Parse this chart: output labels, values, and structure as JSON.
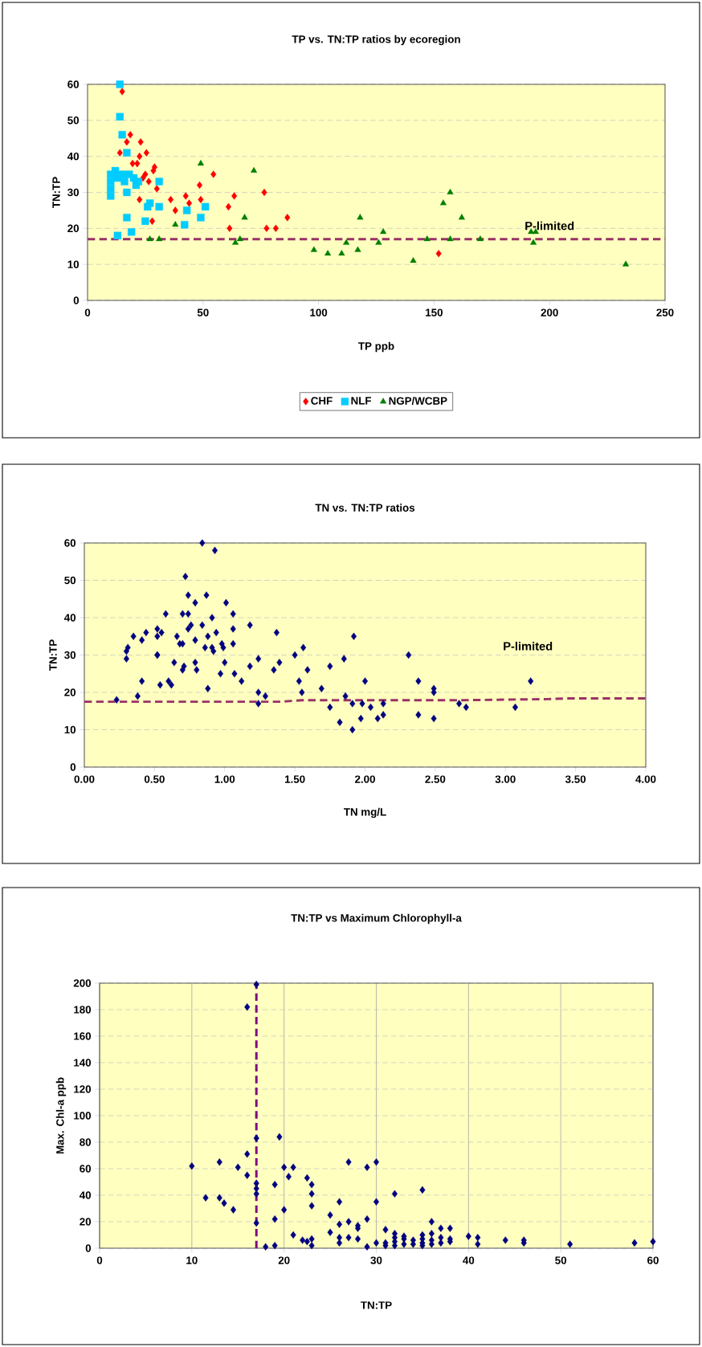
{
  "chart_data": [
    {
      "type": "scatter",
      "title": "TP vs. TN:TP ratios by ecoregion",
      "xlabel": "TP ppb",
      "ylabel": "TN:TP",
      "xlim": [
        0,
        250
      ],
      "ylim": [
        0,
        60
      ],
      "xticks": [
        0,
        50,
        100,
        150,
        200,
        250
      ],
      "yticks": [
        0,
        10,
        20,
        30,
        40,
        50,
        60
      ],
      "grid": "y",
      "legend": "bottom",
      "series": [
        {
          "name": "CHF",
          "color": "#ff0000",
          "marker": "diamond",
          "x": [
            15,
            18.5,
            17,
            23,
            14,
            18.5,
            22.5,
            25.5,
            19.5,
            21.5,
            29,
            25,
            24,
            28.5,
            26.5,
            30,
            22.5,
            36,
            38,
            42.5,
            44,
            48.5,
            49,
            54.5,
            61,
            63.5,
            61.5,
            76.5,
            77.5,
            81.5,
            86.5,
            28,
            152
          ],
          "values": [
            58,
            46,
            44,
            44,
            41,
            null,
            40,
            41,
            38,
            38,
            37,
            35,
            34,
            36,
            33,
            31,
            28,
            28,
            25,
            29,
            27,
            32,
            28,
            35,
            26,
            29,
            20,
            30,
            20,
            20,
            23,
            22,
            13
          ]
        },
        {
          "name": "NLF",
          "color": "#00ccff",
          "marker": "square",
          "x": [
            14,
            14,
            15,
            17,
            10,
            10,
            10,
            10,
            12,
            13,
            15,
            16,
            17,
            18,
            20,
            21,
            22,
            31,
            27,
            31,
            26,
            17,
            25,
            19,
            13,
            43,
            42,
            49,
            51
          ],
          "values": [
            60,
            51,
            46,
            41,
            35,
            33,
            31,
            29,
            36,
            34,
            35,
            33,
            30,
            35,
            34,
            32,
            33,
            33,
            27,
            26,
            26,
            23,
            22,
            19,
            18,
            25,
            21,
            23,
            26
          ]
        },
        {
          "name": "NGP/WCBP",
          "color": "#008000",
          "marker": "triangle",
          "x": [
            49,
            72,
            27,
            31,
            38,
            68,
            66,
            64,
            98,
            104,
            110,
            112,
            117,
            118,
            126,
            128,
            141,
            147,
            154,
            157,
            157,
            162,
            170,
            192,
            194,
            193,
            233
          ],
          "values": [
            38,
            36,
            17,
            17,
            21,
            23,
            17,
            16,
            14,
            13,
            13,
            16,
            14,
            23,
            16,
            19,
            11,
            17,
            27,
            30,
            17,
            23,
            17,
            19,
            19,
            16,
            10
          ]
        }
      ],
      "ref_lines": [
        {
          "axis": "y",
          "value": 17,
          "label": "P-limited",
          "color": "#993366",
          "line_style": "dashed"
        }
      ]
    },
    {
      "type": "scatter",
      "title": "TN vs. TN:TP ratios",
      "xlabel": "TN mg/L",
      "ylabel": "TN:TP",
      "xlim": [
        0,
        4
      ],
      "ylim": [
        0,
        60
      ],
      "xticks": [
        {
          "value": 0,
          "label": "0.00"
        },
        {
          "value": 0.5,
          "label": "0.50"
        },
        {
          "value": 1,
          "label": "1.00"
        },
        {
          "value": 1.5,
          "label": "1.50"
        },
        {
          "value": 2,
          "label": "2.00"
        },
        {
          "value": 2.5,
          "label": "2.50"
        },
        {
          "value": 3,
          "label": "3.00"
        },
        {
          "value": 3.5,
          "label": "3.50"
        },
        {
          "value": 4,
          "label": "4.00"
        }
      ],
      "yticks": [
        0,
        10,
        20,
        30,
        40,
        50,
        60
      ],
      "grid": "y",
      "series": [
        {
          "color": "#000080",
          "marker": "diamond",
          "x": [
            0.84,
            0.93,
            0.72,
            0.74,
            0.87,
            0.79,
            1.01,
            0.58,
            0.7,
            0.74,
            0.91,
            1.06,
            0.76,
            0.84,
            0.74,
            1.06,
            1.18,
            0.35,
            0.44,
            0.41,
            0.52,
            0.55,
            0.52,
            0.66,
            0.68,
            0.7,
            0.79,
            0.88,
            0.94,
            0.86,
            0.91,
            0.92,
            0.98,
            0.99,
            1.06,
            0.31,
            0.3,
            0.3,
            0.52,
            0.52,
            0.64,
            0.79,
            0.71,
            0.7,
            0.8,
            1.0,
            0.97,
            1.07,
            1.12,
            1.18,
            1.24,
            0.41,
            0.54,
            0.6,
            0.62,
            0.88,
            0.38,
            0.23,
            1.24,
            1.29,
            1.24,
            1.37,
            1.35,
            1.39,
            1.5,
            1.56,
            1.59,
            1.53,
            1.55,
            1.69,
            1.75,
            1.85,
            1.92,
            1.75,
            1.82,
            1.86,
            1.91,
            1.91,
            1.97,
            1.98,
            2.0,
            2.04,
            2.09,
            2.13,
            2.13,
            2.31,
            2.38,
            2.38,
            2.49,
            2.49,
            2.49,
            2.67,
            2.72,
            3.07,
            3.18
          ],
          "values": [
            60,
            58,
            51,
            46,
            46,
            44,
            44,
            41,
            41,
            41,
            40,
            41,
            38,
            38,
            37,
            37,
            38,
            35,
            36,
            34,
            37,
            36,
            35,
            35,
            33,
            33,
            34,
            35,
            36,
            32,
            32,
            31,
            33,
            32,
            33,
            32,
            31,
            29,
            30,
            30,
            28,
            28,
            27,
            26,
            26,
            28,
            25,
            25,
            23,
            27,
            29,
            23,
            22,
            23,
            22,
            21,
            19,
            18,
            20,
            19,
            17,
            36,
            26,
            28,
            30,
            32,
            26,
            23,
            20,
            21,
            27,
            29,
            35,
            16,
            12,
            19,
            17,
            10,
            13,
            17,
            23,
            16,
            13,
            14,
            17,
            30,
            23,
            14,
            21,
            20,
            13,
            17,
            16,
            16,
            23
          ]
        },
        {
          "type": "line",
          "color": "#993366",
          "marker": "none",
          "line_style": "dashed",
          "x": [
            0,
            1.4,
            1.55,
            2.7,
            3.3,
            3.45,
            4
          ],
          "values": [
            17.5,
            17.5,
            17.9,
            17.9,
            18.2,
            18.4,
            18.4
          ]
        }
      ],
      "annotations": [
        "P-limited"
      ]
    },
    {
      "type": "scatter",
      "title": "TN:TP vs Maximum Chlorophyll-a",
      "xlabel": "TN:TP",
      "ylabel": "Max. Chl-a ppb",
      "xlim": [
        0,
        60
      ],
      "ylim": [
        0,
        200
      ],
      "xticks": [
        0,
        10,
        20,
        30,
        40,
        50,
        60
      ],
      "yticks": [
        0,
        20,
        40,
        60,
        80,
        100,
        120,
        140,
        160,
        180,
        200
      ],
      "grid": true,
      "series": [
        {
          "color": "#000080",
          "marker": "diamond",
          "x": [
            17,
            16,
            17,
            19.5,
            16,
            10,
            13,
            15,
            16,
            20,
            21,
            20.5,
            17,
            17,
            17,
            19,
            22.5,
            23,
            23,
            27,
            29,
            30,
            32,
            11.5,
            13,
            13.5,
            14.5,
            20,
            23,
            26,
            30,
            25,
            35,
            17,
            18,
            19,
            19,
            21,
            22,
            22.5,
            23,
            23,
            25,
            26,
            26,
            26,
            27,
            27,
            28,
            28,
            28,
            29,
            29,
            30,
            31,
            31,
            31,
            32,
            32,
            32,
            32,
            33,
            33,
            33,
            34,
            34,
            35,
            35,
            35,
            35,
            36,
            36,
            36,
            36,
            37,
            37,
            37,
            38,
            38,
            38,
            40,
            41,
            41,
            44,
            46,
            46,
            51,
            58,
            60
          ],
          "values": [
            199,
            182,
            83,
            84,
            71,
            62,
            65,
            61,
            55,
            61,
            61,
            54,
            49,
            45,
            41,
            48,
            53,
            48,
            41,
            65,
            61,
            65,
            41,
            38,
            38,
            34,
            29,
            29,
            32,
            35,
            35,
            25,
            44,
            19,
            1,
            2,
            22,
            10,
            6,
            5,
            7,
            2,
            12,
            18,
            8,
            4,
            20,
            8,
            17,
            15,
            7,
            22,
            1,
            4,
            14,
            4,
            2,
            11,
            8,
            5,
            2,
            9,
            7,
            3,
            6,
            3,
            10,
            7,
            4,
            2,
            20,
            11,
            6,
            3,
            15,
            8,
            4,
            15,
            7,
            5,
            9,
            8,
            3,
            6,
            6,
            4,
            3,
            4,
            5
          ]
        }
      ],
      "ref_lines": [
        {
          "axis": "x",
          "value": 17,
          "color": "#800080",
          "line_style": "dashed"
        }
      ]
    }
  ]
}
